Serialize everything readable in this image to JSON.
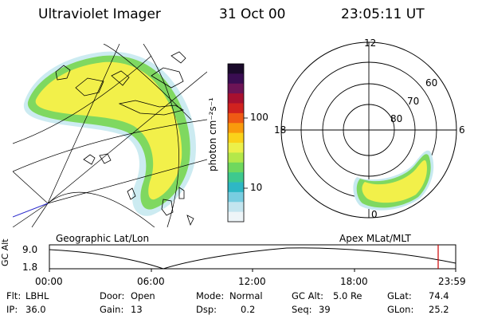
{
  "header": {
    "instrument": "Ultraviolet Imager",
    "date": "31 Oct 00",
    "time": "23:05:11 UT"
  },
  "colorbar": {
    "unit_label": "photon cm⁻²s⁻¹",
    "tick_100": "100",
    "tick_10": "10",
    "colors": [
      "#1a0a2a",
      "#3a0d52",
      "#6d1456",
      "#a81030",
      "#d0221f",
      "#ef5a14",
      "#f99a0c",
      "#fad21a",
      "#ecf04a",
      "#b4e84a",
      "#6fd85e",
      "#3ec98e",
      "#2eb7c4",
      "#78cde0",
      "#c3e5ef",
      "#eef5f8"
    ]
  },
  "left_panel": {
    "caption": "Geographic Lat/Lon"
  },
  "right_panel": {
    "caption": "Apex MLat/MLT",
    "labels": {
      "mlt_12": "12",
      "mlt_18": "18",
      "mlt_6": "6",
      "mlt_0": "0",
      "lat_60": "60",
      "lat_70": "70",
      "lat_80": "80"
    }
  },
  "timeline": {
    "axis_label": "GC Alt",
    "y_top": "9.0",
    "y_bottom": "1.8",
    "x_labels": [
      "00:00",
      "06:00",
      "12:00",
      "18:00",
      "23:59"
    ]
  },
  "info": {
    "flt_label": "Flt:",
    "flt_value": "LBHL",
    "door_label": "Door:",
    "door_value": "Open",
    "mode_label": "Mode:",
    "mode_value": "Normal",
    "gcalt_label": "GC Alt:",
    "gcalt_value": "5.0 Re",
    "glat_label": "GLat:",
    "glat_value": "74.4",
    "ip_label": "IP:",
    "ip_value": "36.0",
    "gain_label": "Gain:",
    "gain_value": "13",
    "dsp_label": "Dsp:",
    "dsp_value": "0.2",
    "seq_label": "Seq:",
    "seq_value": "39",
    "glon_label": "GLon:",
    "glon_value": "25.2"
  },
  "colors": {
    "aurora_yellow": "#f2f04a",
    "aurora_green": "#7fd860",
    "aurora_cyan": "#9edbe8",
    "timeline_marker": "#cc0000"
  }
}
